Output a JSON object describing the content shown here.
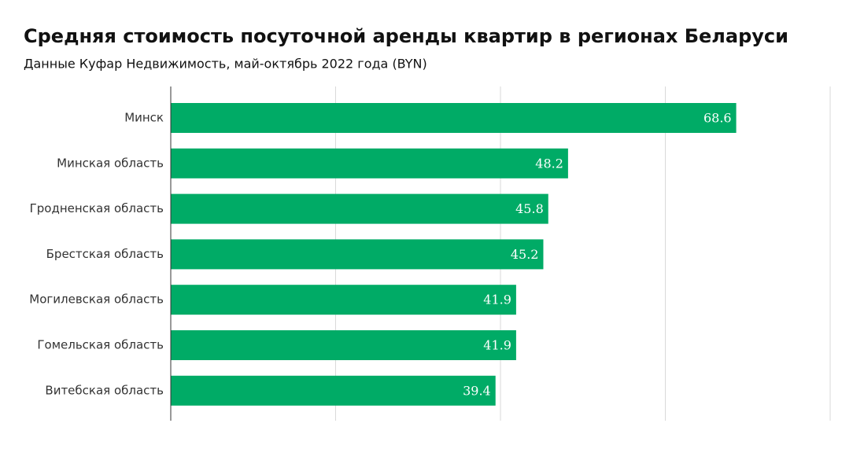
{
  "chart_data": {
    "type": "bar",
    "orientation": "horizontal",
    "title": "Средняя стоимость посуточной аренды квартир в регионах Беларуси",
    "subtitle": "Данные Куфар Недвижимость, май-октябрь 2022 года (BYN)",
    "categories": [
      "Минск",
      "Минская область",
      "Гродненская область",
      "Брестская область",
      "Могилевская область",
      "Гомельская область",
      "Витебская область"
    ],
    "values": [
      68.6,
      48.2,
      45.8,
      45.2,
      41.9,
      41.9,
      39.4
    ],
    "color": "#00ab66",
    "xlim": [
      0,
      80
    ],
    "xticks": [
      0,
      20,
      40,
      60,
      80
    ],
    "grid": true
  }
}
